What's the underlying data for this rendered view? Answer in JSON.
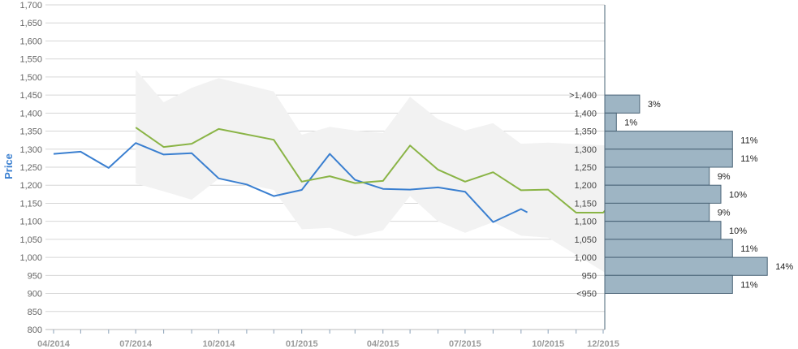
{
  "chart_data": {
    "type": "line",
    "ylabel": "Price",
    "ylim": [
      800,
      1700
    ],
    "y_ticks": [
      800,
      850,
      900,
      950,
      1000,
      1050,
      1100,
      1150,
      1200,
      1250,
      1300,
      1350,
      1400,
      1450,
      1500,
      1550,
      1600,
      1650,
      1700
    ],
    "y_tick_labels": [
      "800",
      "850",
      "900",
      "950",
      "1,000",
      "1,050",
      "1,100",
      "1,150",
      "1,200",
      "1,250",
      "1,300",
      "1,350",
      "1,400",
      "1,450",
      "1,500",
      "1,550",
      "1,600",
      "1,650",
      "1,700"
    ],
    "x_tick_labels": [
      "04/2014",
      "07/2014",
      "10/2014",
      "01/2015",
      "04/2015",
      "07/2015",
      "10/2015",
      "12/2015"
    ],
    "x_tick_dates": [
      "2014-04-01",
      "2014-07-01",
      "2014-10-01",
      "2015-01-01",
      "2015-04-01",
      "2015-07-01",
      "2015-10-01",
      "2015-12-01"
    ],
    "grid": true,
    "series": [
      {
        "kind": "line",
        "color": "#3a7fd0",
        "points": [
          [
            "2014-04-01",
            1287
          ],
          [
            "2014-05-01",
            1293
          ],
          [
            "2014-06-01",
            1248
          ],
          [
            "2014-07-01",
            1317
          ],
          [
            "2014-08-01",
            1285
          ],
          [
            "2014-09-01",
            1289
          ],
          [
            "2014-10-01",
            1219
          ],
          [
            "2014-11-01",
            1202
          ],
          [
            "2014-12-01",
            1170
          ],
          [
            "2015-01-01",
            1187
          ],
          [
            "2015-02-01",
            1287
          ],
          [
            "2015-03-01",
            1215
          ],
          [
            "2015-04-01",
            1190
          ],
          [
            "2015-05-01",
            1188
          ],
          [
            "2015-06-01",
            1194
          ],
          [
            "2015-07-01",
            1182
          ],
          [
            "2015-08-01",
            1098
          ],
          [
            "2015-09-01",
            1134
          ],
          [
            "2015-09-08",
            1125
          ]
        ]
      },
      {
        "kind": "line",
        "color": "#8ab446",
        "points": [
          [
            "2014-07-01",
            1360
          ],
          [
            "2014-08-01",
            1306
          ],
          [
            "2014-09-01",
            1315
          ],
          [
            "2014-10-01",
            1356
          ],
          [
            "2014-12-01",
            1326
          ],
          [
            "2015-01-01",
            1210
          ],
          [
            "2015-02-01",
            1225
          ],
          [
            "2015-03-01",
            1206
          ],
          [
            "2015-04-01",
            1212
          ],
          [
            "2015-05-01",
            1310
          ],
          [
            "2015-06-01",
            1243
          ],
          [
            "2015-07-01",
            1210
          ],
          [
            "2015-08-01",
            1236
          ],
          [
            "2015-09-01",
            1186
          ],
          [
            "2015-10-01",
            1188
          ],
          [
            "2015-11-01",
            1124
          ],
          [
            "2015-12-01",
            1124
          ],
          [
            "2015-12-05",
            1135
          ]
        ]
      },
      {
        "kind": "band",
        "color": "#f2f2f2",
        "upper": [
          [
            "2014-07-01",
            1520
          ],
          [
            "2014-08-01",
            1430
          ],
          [
            "2014-09-01",
            1470
          ],
          [
            "2014-10-01",
            1497
          ],
          [
            "2014-12-01",
            1460
          ],
          [
            "2015-01-01",
            1340
          ],
          [
            "2015-02-01",
            1362
          ],
          [
            "2015-03-01",
            1352
          ],
          [
            "2015-04-01",
            1345
          ],
          [
            "2015-05-01",
            1445
          ],
          [
            "2015-06-01",
            1383
          ],
          [
            "2015-07-01",
            1352
          ],
          [
            "2015-08-01",
            1372
          ],
          [
            "2015-09-01",
            1315
          ],
          [
            "2015-10-01",
            1318
          ],
          [
            "2015-12-05",
            1310
          ]
        ],
        "lower": [
          [
            "2014-07-01",
            1205
          ],
          [
            "2014-08-01",
            1183
          ],
          [
            "2014-09-01",
            1160
          ],
          [
            "2014-10-01",
            1218
          ],
          [
            "2014-12-01",
            1187
          ],
          [
            "2015-01-01",
            1078
          ],
          [
            "2015-02-01",
            1082
          ],
          [
            "2015-03-01",
            1058
          ],
          [
            "2015-04-01",
            1075
          ],
          [
            "2015-05-01",
            1170
          ],
          [
            "2015-06-01",
            1100
          ],
          [
            "2015-07-01",
            1068
          ],
          [
            "2015-08-01",
            1098
          ],
          [
            "2015-09-01",
            1060
          ],
          [
            "2015-10-01",
            1055
          ],
          [
            "2015-12-05",
            955
          ]
        ]
      }
    ],
    "distribution": {
      "bins": [
        ">1,400",
        "1,400",
        "1,350",
        "1,300",
        "1,250",
        "1,200",
        "1,150",
        "1,100",
        "1,050",
        "1,000",
        "950",
        "<950"
      ],
      "bars": [
        {
          "value": 3,
          "label": "3%"
        },
        {
          "value": 1,
          "label": "1%"
        },
        {
          "value": 11,
          "label": "11%"
        },
        {
          "value": 11,
          "label": "11%"
        },
        {
          "value": 9,
          "label": "9%"
        },
        {
          "value": 10,
          "label": "10%"
        },
        {
          "value": 9,
          "label": "9%"
        },
        {
          "value": 10,
          "label": "10%"
        },
        {
          "value": 11,
          "label": "11%"
        },
        {
          "value": 14,
          "label": "14%"
        },
        {
          "value": 11,
          "label": "11%"
        }
      ],
      "bar_color": "#9eb5c4",
      "bar_stroke": "#4a6477"
    }
  }
}
